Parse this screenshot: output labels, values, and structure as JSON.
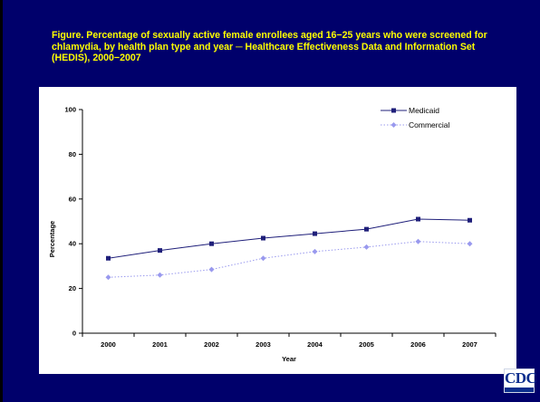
{
  "title": "Figure. Percentage of sexually active female enrollees aged 16−25 years who were screened for chlamydia, by health plan type and year ─ Healthcare Effectiveness Data and Information Set (HEDIS), 2000−2007",
  "logo": {
    "text": "CDC"
  },
  "colors": {
    "background": "#00006b",
    "title": "#ffff00",
    "medicaid": "#1f1f7a",
    "commercial": "#9999ee"
  },
  "chart_data": {
    "type": "line",
    "categories": [
      "2000",
      "2001",
      "2002",
      "2003",
      "2004",
      "2005",
      "2006",
      "2007"
    ],
    "series": [
      {
        "name": "Medicaid",
        "values": [
          33.5,
          37,
          40,
          42.5,
          44.5,
          46.5,
          51,
          50.5
        ],
        "line_style": "solid",
        "marker": "square"
      },
      {
        "name": "Commercial",
        "values": [
          25,
          26,
          28.5,
          33.5,
          36.5,
          38.5,
          41,
          40
        ],
        "line_style": "dotted",
        "marker": "diamond"
      }
    ],
    "xlabel": "Year",
    "ylabel": "Percentage",
    "ylim": [
      0,
      100
    ],
    "yticks": [
      "0",
      "20",
      "40",
      "60",
      "80",
      "100"
    ],
    "grid": false,
    "legend_position": "top-right"
  }
}
